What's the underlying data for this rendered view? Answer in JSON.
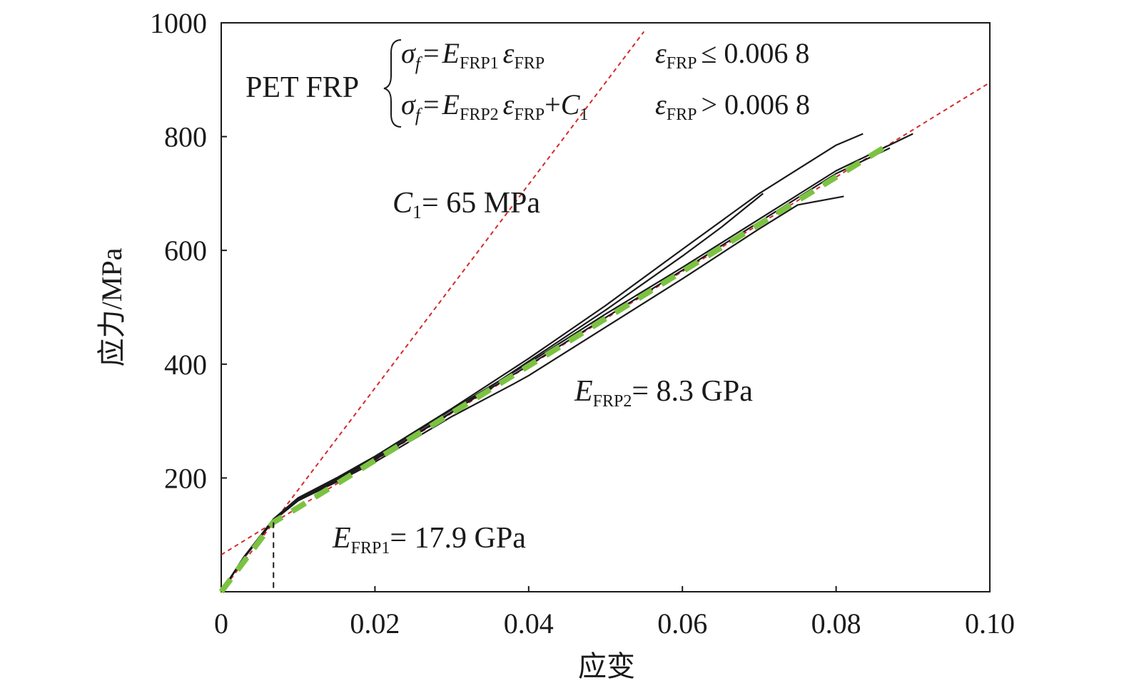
{
  "chart_data": {
    "type": "line",
    "xlabel": "应变",
    "ylabel": "应力/MPa",
    "xlim": [
      0,
      0.1
    ],
    "ylim": [
      0,
      1000
    ],
    "x_ticks": [
      0,
      0.02,
      0.04,
      0.06,
      0.08,
      0.1
    ],
    "x_tick_labels": [
      "0",
      "0.02",
      "0.04",
      "0.06",
      "0.08",
      "0.10"
    ],
    "y_ticks": [
      200,
      400,
      600,
      800,
      1000
    ],
    "y_tick_labels": [
      "200",
      "400",
      "600",
      "800",
      "1000"
    ],
    "grid": false,
    "colors": {
      "test_curves": "#1a1a1a",
      "fit_line": "#d42a2a",
      "model_curve": "#7cc242",
      "threshold_line": "#1a1a1a"
    },
    "annotations": {
      "material": "PET FRP",
      "eq1_lhs": "σ",
      "eq1_lhs_sub": "f",
      "eq1_eq": "=",
      "eq1_E": "E",
      "eq1_E_sub": "FRP1",
      "eq1_eps": "ε",
      "eq1_eps_sub": "FRP",
      "eq1_cond_eps": "ε",
      "eq1_cond_sub": "FRP",
      "eq1_cond": "≤ 0.006 8",
      "eq2_lhs": "σ",
      "eq2_lhs_sub": "f",
      "eq2_eq": "=",
      "eq2_E": "E",
      "eq2_E_sub": "FRP2",
      "eq2_eps": "ε",
      "eq2_eps_sub": "FRP",
      "eq2_plus": "+",
      "eq2_C": "C",
      "eq2_C_sub": "1",
      "eq2_cond_eps": "ε",
      "eq2_cond_sub": "FRP",
      "eq2_cond": "> 0.006 8",
      "c1_C": "C",
      "c1_sub": "1",
      "c1_val": "= 65 MPa",
      "e2_E": "E",
      "e2_sub": "FRP2",
      "e2_val": "= 8.3 GPa",
      "e1_E": "E",
      "e1_sub": "FRP1",
      "e1_val": "= 17.9 GPa"
    },
    "threshold_strain": 0.0068,
    "fit_lines": [
      {
        "x": [
          0,
          0.055
        ],
        "y": [
          0,
          984.5
        ]
      },
      {
        "x": [
          0,
          0.1
        ],
        "y": [
          65,
          895
        ]
      }
    ],
    "model_curve": {
      "x": [
        0,
        0.0068,
        0.01,
        0.02,
        0.03,
        0.04,
        0.05,
        0.06,
        0.07,
        0.08,
        0.087
      ],
      "y": [
        0,
        122,
        148,
        231,
        314,
        397,
        480,
        563,
        646,
        729,
        787
      ]
    },
    "series": [
      {
        "x": [
          0,
          0.003,
          0.0068,
          0.01,
          0.015,
          0.02,
          0.03,
          0.04,
          0.05,
          0.06,
          0.07,
          0.08,
          0.0835
        ],
        "y": [
          0,
          62,
          128,
          165,
          200,
          238,
          322,
          410,
          503,
          602,
          700,
          785,
          805
        ]
      },
      {
        "x": [
          0,
          0.003,
          0.0068,
          0.01,
          0.015,
          0.02,
          0.03,
          0.04,
          0.05,
          0.06,
          0.065,
          0.0705
        ],
        "y": [
          0,
          60,
          125,
          160,
          195,
          232,
          315,
          405,
          495,
          590,
          640,
          700
        ]
      },
      {
        "x": [
          0,
          0.003,
          0.0068,
          0.01,
          0.015,
          0.02,
          0.03,
          0.038,
          0.04,
          0.05,
          0.06,
          0.07,
          0.075,
          0.081
        ],
        "y": [
          0,
          61,
          126,
          160,
          193,
          228,
          308,
          365,
          380,
          465,
          550,
          638,
          680,
          695
        ]
      },
      {
        "x": [
          0,
          0.003,
          0.0068,
          0.01,
          0.015,
          0.02,
          0.03,
          0.04,
          0.05,
          0.06,
          0.07,
          0.08,
          0.09
        ],
        "y": [
          0,
          62,
          127,
          163,
          198,
          236,
          320,
          402,
          488,
          570,
          655,
          740,
          805
        ]
      },
      {
        "x": [
          0,
          0.003,
          0.0068,
          0.01,
          0.015,
          0.02,
          0.03,
          0.04,
          0.05,
          0.06,
          0.07,
          0.08,
          0.087
        ],
        "y": [
          0,
          61,
          126,
          161,
          196,
          233,
          316,
          398,
          482,
          565,
          650,
          735,
          780
        ]
      }
    ]
  }
}
